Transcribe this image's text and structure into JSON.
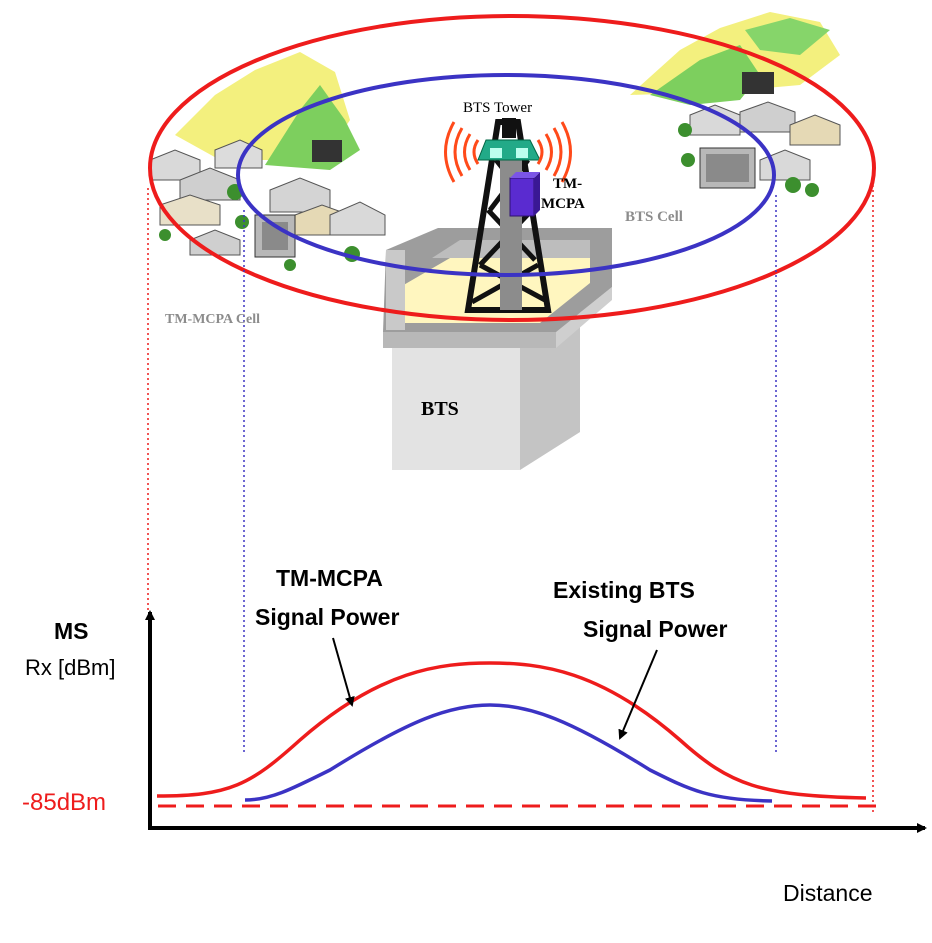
{
  "labels": {
    "bts_tower": "BTS Tower",
    "tm_mcpa_device_line1": "TM-",
    "tm_mcpa_device_line2": "MCPA",
    "bts_cell": "BTS Cell",
    "tm_mcpa_cell": "TM-MCPA Cell",
    "bts": "BTS"
  },
  "plot": {
    "y_label_line1": "MS",
    "y_label_line2": "Rx [dBm]",
    "threshold_label": "-85dBm",
    "x_label": "Distance",
    "tm_mcpa_curve_label_line1": "TM-MCPA",
    "tm_mcpa_curve_label_line2": "Signal Power",
    "bts_curve_label_line1": "Existing BTS",
    "bts_curve_label_line2": "Signal Power"
  },
  "colors": {
    "tm_mcpa": "#ee1c1c",
    "bts": "#3b33c4",
    "cell_label_gray": "#8c8c8c",
    "axis": "#000000"
  }
}
